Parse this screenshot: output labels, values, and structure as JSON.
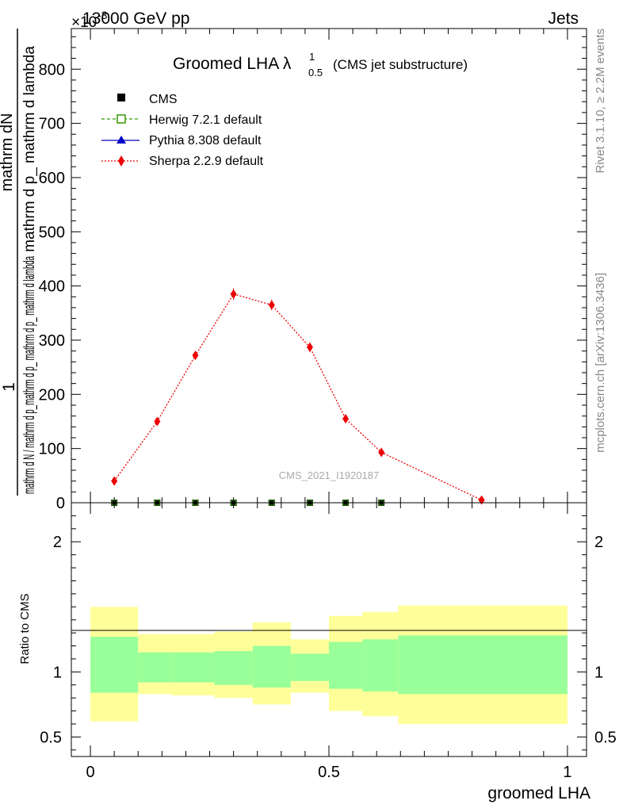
{
  "header": {
    "energy": "13000 GeV pp",
    "category": "Jets",
    "exponent": "×10",
    "exponent_power": "-3"
  },
  "side_labels": {
    "rivet": "Rivet 3.1.10, ≥ 2.2M events",
    "mcplots": "mcplots.cern.ch [arXiv:1306.3436]"
  },
  "plot_title": {
    "main": "Groomed LHA λ",
    "sup": "1",
    "sub": "0.5",
    "suffix": "(CMS jet substructure)"
  },
  "watermark": "CMS_2021_I1920187",
  "ylabel_main": {
    "numerator": "mathrm dN",
    "denominator_right": "mathrm d p_ mathrm d lambda",
    "prefix": "1",
    "denominator": "mathrm d N / mathrm d p_mathrm d p_ mathrm d p_ mathrm d lambda"
  },
  "ylabel_ratio": "Ratio to CMS",
  "xlabel": "groomed LHA",
  "colors": {
    "herwig": "#339900",
    "pythia": "#0000cc",
    "sherpa": "#ee0000",
    "band_inner": "#99ff99",
    "band_outer": "#ffff99"
  },
  "chart_data": [
    {
      "type": "scatter",
      "panel": "main",
      "x_axis": {
        "range": [
          -0.04,
          1.04
        ],
        "ticks": [
          "0",
          "0.5",
          "1"
        ]
      },
      "y_axis": {
        "range": [
          0,
          875
        ],
        "unit_multiplier": "×10^-3",
        "ticks": [
          "0",
          "100",
          "200",
          "300",
          "400",
          "500",
          "600",
          "700",
          "800"
        ]
      },
      "legend": {
        "placement": "top-left",
        "entries": [
          {
            "name": "CMS",
            "marker": "square-filled"
          },
          {
            "name": "Herwig 7.2.1 default",
            "marker": "square-open",
            "line": "dashed"
          },
          {
            "name": "Pythia 8.308 default",
            "marker": "triangle",
            "line": "solid"
          },
          {
            "name": "Sherpa 2.2.9 default",
            "marker": "diamond",
            "line": "dotted"
          }
        ]
      },
      "series": [
        {
          "name": "CMS",
          "x": [
            0.05,
            0.14,
            0.22,
            0.3,
            0.38,
            0.46,
            0.535,
            0.61
          ],
          "y": [
            0,
            0,
            0,
            0,
            0,
            0,
            0,
            0
          ]
        },
        {
          "name": "Herwig 7.2.1 default",
          "x": [
            0.05,
            0.14,
            0.22,
            0.3,
            0.38,
            0.46,
            0.535,
            0.61
          ],
          "y": [
            0,
            0,
            0,
            0,
            0,
            0,
            0,
            0
          ]
        },
        {
          "name": "Pythia 8.308 default",
          "x": [
            0.05,
            0.14,
            0.22,
            0.3,
            0.38,
            0.46,
            0.535,
            0.61
          ],
          "y": [
            0,
            0,
            0,
            0,
            0,
            0,
            0,
            0
          ]
        },
        {
          "name": "Sherpa 2.2.9 default",
          "x": [
            0.05,
            0.14,
            0.22,
            0.3,
            0.38,
            0.46,
            0.535,
            0.61,
            0.82
          ],
          "y": [
            40,
            150,
            272,
            385,
            365,
            287,
            155,
            93,
            5
          ],
          "err": [
            5,
            7,
            8,
            11,
            10,
            9,
            8,
            6,
            3
          ]
        }
      ]
    },
    {
      "type": "area",
      "panel": "ratio",
      "x_axis": {
        "range": [
          -0.04,
          1.04
        ],
        "ticks": [
          "0",
          "0.5",
          "1"
        ]
      },
      "y_axis": {
        "range": [
          0.35,
          2.3
        ],
        "ticks": [
          "0.5",
          "1",
          "2"
        ]
      },
      "reference_line": 1,
      "bins": [
        {
          "x_lo": 0.0,
          "x_hi": 0.1,
          "inner": [
            0.84,
            1.27
          ],
          "outer": [
            0.62,
            1.5
          ]
        },
        {
          "x_lo": 0.1,
          "x_hi": 0.17,
          "inner": [
            0.92,
            1.15
          ],
          "outer": [
            0.83,
            1.29
          ]
        },
        {
          "x_lo": 0.17,
          "x_hi": 0.26,
          "inner": [
            0.92,
            1.15
          ],
          "outer": [
            0.82,
            1.29
          ]
        },
        {
          "x_lo": 0.26,
          "x_hi": 0.34,
          "inner": [
            0.9,
            1.16
          ],
          "outer": [
            0.8,
            1.31
          ]
        },
        {
          "x_lo": 0.34,
          "x_hi": 0.42,
          "inner": [
            0.88,
            1.2
          ],
          "outer": [
            0.75,
            1.38
          ]
        },
        {
          "x_lo": 0.42,
          "x_hi": 0.5,
          "inner": [
            0.93,
            1.14
          ],
          "outer": [
            0.84,
            1.25
          ]
        },
        {
          "x_lo": 0.5,
          "x_hi": 0.57,
          "inner": [
            0.87,
            1.23
          ],
          "outer": [
            0.7,
            1.43
          ]
        },
        {
          "x_lo": 0.57,
          "x_hi": 0.645,
          "inner": [
            0.85,
            1.25
          ],
          "outer": [
            0.66,
            1.46
          ]
        },
        {
          "x_lo": 0.645,
          "x_hi": 1.0,
          "inner": [
            0.83,
            1.28
          ],
          "outer": [
            0.6,
            1.51
          ]
        }
      ]
    }
  ]
}
